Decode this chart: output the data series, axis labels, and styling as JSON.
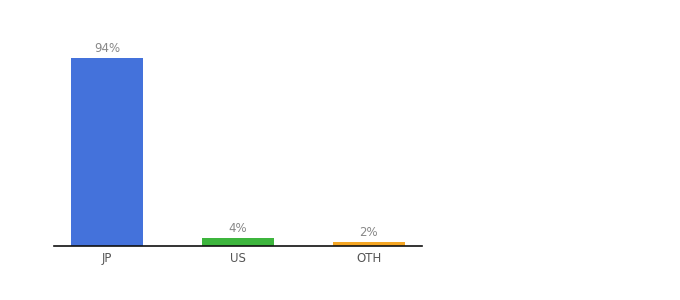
{
  "categories": [
    "JP",
    "US",
    "OTH"
  ],
  "values": [
    94,
    4,
    2
  ],
  "bar_colors": [
    "#4472db",
    "#3db53d",
    "#f5a623"
  ],
  "labels": [
    "94%",
    "4%",
    "2%"
  ],
  "background_color": "#ffffff",
  "label_fontsize": 8.5,
  "tick_fontsize": 8.5,
  "ylim": [
    0,
    105
  ],
  "bar_width": 0.55,
  "x_positions": [
    0,
    1,
    2
  ],
  "label_color": "#888888",
  "tick_color": "#555555",
  "bottom_spine_color": "#111111"
}
